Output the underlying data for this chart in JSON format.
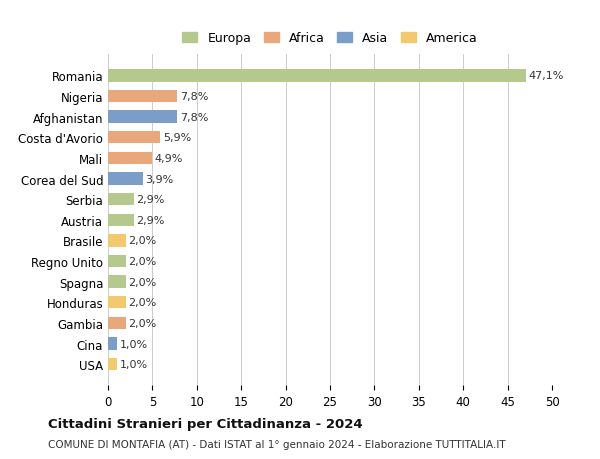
{
  "countries": [
    "Romania",
    "Nigeria",
    "Afghanistan",
    "Costa d'Avorio",
    "Mali",
    "Corea del Sud",
    "Serbia",
    "Austria",
    "Brasile",
    "Regno Unito",
    "Spagna",
    "Honduras",
    "Gambia",
    "Cina",
    "USA"
  ],
  "values": [
    47.1,
    7.8,
    7.8,
    5.9,
    4.9,
    3.9,
    2.9,
    2.9,
    2.0,
    2.0,
    2.0,
    2.0,
    2.0,
    1.0,
    1.0
  ],
  "labels": [
    "47,1%",
    "7,8%",
    "7,8%",
    "5,9%",
    "4,9%",
    "3,9%",
    "2,9%",
    "2,9%",
    "2,0%",
    "2,0%",
    "2,0%",
    "2,0%",
    "2,0%",
    "1,0%",
    "1,0%"
  ],
  "continents": [
    "Europa",
    "Africa",
    "Asia",
    "Africa",
    "Africa",
    "Asia",
    "Europa",
    "Europa",
    "America",
    "Europa",
    "Europa",
    "America",
    "Africa",
    "Asia",
    "America"
  ],
  "continent_colors": {
    "Europa": "#b5c98e",
    "Africa": "#e8a87c",
    "Asia": "#7b9ec9",
    "America": "#f2c96e"
  },
  "legend_order": [
    "Europa",
    "Africa",
    "Asia",
    "America"
  ],
  "title": "Cittadini Stranieri per Cittadinanza - 2024",
  "subtitle": "COMUNE DI MONTAFIA (AT) - Dati ISTAT al 1° gennaio 2024 - Elaborazione TUTTITALIA.IT",
  "xlim": [
    0,
    50
  ],
  "xticks": [
    0,
    5,
    10,
    15,
    20,
    25,
    30,
    35,
    40,
    45,
    50
  ],
  "background_color": "#ffffff",
  "grid_color": "#cccccc",
  "bar_height": 0.6
}
